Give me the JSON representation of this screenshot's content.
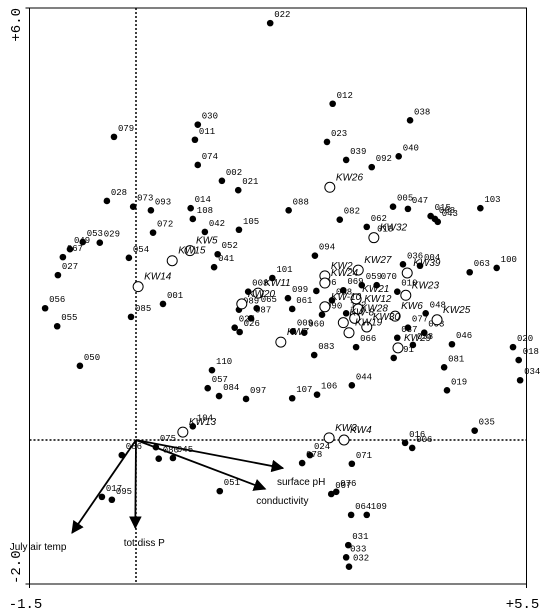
{
  "chart_data": {
    "type": "biplot",
    "xlim": [
      -1.5,
      5.5
    ],
    "ylim": [
      -2,
      6
    ],
    "xticks": [
      -1.5,
      {
        "value": 5.5,
        "label": "+5.5"
      }
    ],
    "yticks": [
      {
        "value": 6,
        "label": "+6.0"
      },
      {
        "value": -2,
        "label": "-2.0"
      }
    ],
    "zero_lines": true,
    "series": [
      {
        "marker": "filled",
        "color": "#000000",
        "labels": [
          "022",
          "012",
          "038",
          "079",
          "030",
          "011",
          "023",
          "039",
          "040",
          "092",
          "074",
          "002",
          "021",
          "028",
          "073",
          "093",
          "014",
          "108",
          "005",
          "047",
          "015",
          "098",
          "103",
          "043",
          "088",
          "082",
          "062",
          "013",
          "042",
          "105",
          "072",
          "029",
          "053",
          "049",
          "067",
          "054",
          "052",
          "041",
          "094",
          "036",
          "004",
          "100",
          "063",
          "027",
          "101",
          "069",
          "059",
          "070",
          "010",
          "096",
          "068",
          "008",
          "099",
          "001",
          "056",
          "065",
          "061",
          "102",
          "048",
          "089",
          "090",
          "087",
          "085",
          "055",
          "077",
          "009",
          "060",
          "026",
          "025",
          "003",
          "037",
          "058",
          "046",
          "020",
          "066",
          "091",
          "083",
          "018",
          "110",
          "050",
          "081",
          "034",
          "044",
          "019",
          "057",
          "084",
          "097",
          "107",
          "106",
          "104",
          "016",
          "006",
          "035",
          "075",
          "086",
          "080",
          "045",
          "024",
          "078",
          "071",
          "051",
          "076",
          "007",
          "017",
          "095",
          "064",
          "109",
          "031",
          "033",
          "032"
        ],
        "x": [
          1.89,
          2.77,
          3.86,
          -0.31,
          0.87,
          0.83,
          2.69,
          2.96,
          3.7,
          3.32,
          0.87,
          1.21,
          1.44,
          -0.41,
          -0.04,
          0.21,
          0.77,
          0.8,
          3.62,
          3.83,
          4.15,
          4.21,
          4.85,
          4.25,
          2.15,
          2.87,
          3.25,
          3.34,
          0.97,
          1.45,
          0.24,
          -0.51,
          -0.75,
          -0.93,
          -1.03,
          -0.1,
          1.15,
          1.1,
          2.52,
          3.76,
          4.0,
          5.08,
          4.7,
          -1.1,
          1.92,
          2.92,
          3.18,
          3.39,
          3.68,
          2.54,
          2.76,
          1.58,
          2.14,
          0.38,
          -1.28,
          1.7,
          2.2,
          2.96,
          4.08,
          1.45,
          2.62,
          1.62,
          -0.07,
          -1.11,
          3.83,
          2.21,
          2.37,
          1.46,
          1.39,
          4.06,
          3.68,
          3.9,
          4.45,
          5.31,
          3.1,
          3.63,
          2.51,
          5.39,
          1.07,
          -0.79,
          4.34,
          5.41,
          3.04,
          4.38,
          1.01,
          1.17,
          1.55,
          2.2,
          2.55,
          0.8,
          3.79,
          3.89,
          4.77,
          0.28,
          -0.2,
          0.32,
          0.52,
          2.45,
          2.34,
          3.04,
          1.18,
          2.82,
          2.75,
          -0.48,
          -0.34,
          3.03,
          3.25,
          2.99,
          2.96,
          3.0
        ],
        "y": [
          5.79,
          4.67,
          4.44,
          4.21,
          4.38,
          4.17,
          4.14,
          3.89,
          3.94,
          3.79,
          3.82,
          3.6,
          3.47,
          3.32,
          3.24,
          3.19,
          3.22,
          3.07,
          3.24,
          3.21,
          3.11,
          3.07,
          3.22,
          3.03,
          3.19,
          3.06,
          2.96,
          2.81,
          2.89,
          2.92,
          2.88,
          2.74,
          2.75,
          2.65,
          2.54,
          2.53,
          2.58,
          2.4,
          2.56,
          2.44,
          2.42,
          2.39,
          2.33,
          2.29,
          2.25,
          2.08,
          2.15,
          2.15,
          2.06,
          2.07,
          1.94,
          2.06,
          1.97,
          1.89,
          1.83,
          1.83,
          1.82,
          1.76,
          1.76,
          1.81,
          1.74,
          1.69,
          1.71,
          1.58,
          1.56,
          1.51,
          1.49,
          1.5,
          1.56,
          1.49,
          1.42,
          1.32,
          1.33,
          1.29,
          1.29,
          1.14,
          1.18,
          1.11,
          0.97,
          1.03,
          1.01,
          0.83,
          0.76,
          0.69,
          0.72,
          0.61,
          0.57,
          0.58,
          0.63,
          0.19,
          -0.04,
          -0.11,
          0.13,
          -0.1,
          -0.21,
          -0.26,
          -0.25,
          -0.21,
          -0.32,
          -0.33,
          -0.71,
          -0.72,
          -0.75,
          -0.79,
          -0.83,
          -1.04,
          -1.04,
          -1.46,
          -1.63,
          -1.76
        ]
      },
      {
        "marker": "open",
        "color": "#000000",
        "labels": [
          "KW26",
          "KW32",
          "KW5",
          "KW15",
          "KW27",
          "KW39",
          "KW14",
          "KW2",
          "KW24",
          "KW11",
          "KW21",
          "KW23",
          "KW20",
          "KW-10",
          "KW12",
          "KW28",
          "KW6",
          "KW25",
          "KW-8",
          "KW30",
          "KW19",
          "KW7",
          "KW29",
          "KW13",
          "KW3",
          "KW4"
        ],
        "x": [
          2.73,
          3.35,
          0.76,
          0.51,
          3.13,
          3.82,
          0.03,
          2.66,
          2.66,
          1.72,
          3.1,
          3.8,
          1.49,
          2.66,
          3.13,
          3.08,
          3.65,
          4.24,
          2.92,
          3.25,
          3.0,
          2.04,
          3.69,
          0.66,
          2.72,
          2.93
        ],
        "y": [
          3.51,
          2.81,
          2.63,
          2.49,
          2.36,
          2.32,
          2.13,
          2.28,
          2.18,
          2.04,
          1.96,
          2.01,
          1.89,
          1.85,
          1.82,
          1.69,
          1.72,
          1.67,
          1.63,
          1.57,
          1.49,
          1.36,
          1.28,
          0.11,
          0.03,
          0.0
        ]
      }
    ],
    "vectors": [
      {
        "name": "surface pH",
        "x": 2.07,
        "y": -0.39
      },
      {
        "name": "conductivity",
        "x": 1.82,
        "y": -0.68
      },
      {
        "name": "tot diss P",
        "x": -0.01,
        "y": -1.22
      },
      {
        "name": "July air temp",
        "x": -0.9,
        "y": -1.29
      }
    ]
  }
}
